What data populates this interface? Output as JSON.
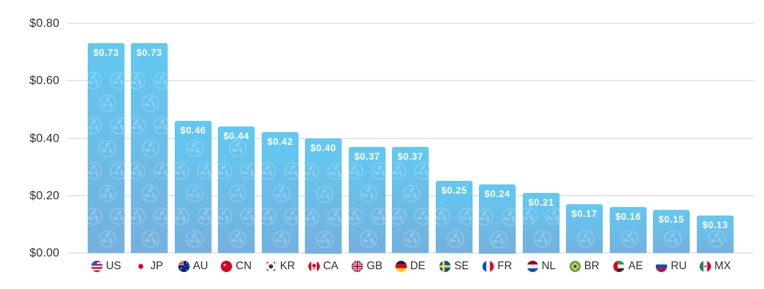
{
  "chart_data": {
    "type": "bar",
    "title": "",
    "xlabel": "",
    "ylabel": "",
    "ylim": [
      0,
      0.8
    ],
    "grid": true,
    "legend": "none",
    "categories": [
      "US",
      "JP",
      "AU",
      "CN",
      "KR",
      "CA",
      "GB",
      "DE",
      "SE",
      "FR",
      "NL",
      "BR",
      "AE",
      "RU",
      "MX"
    ],
    "values": [
      0.73,
      0.73,
      0.46,
      0.44,
      0.42,
      0.4,
      0.37,
      0.37,
      0.25,
      0.24,
      0.21,
      0.17,
      0.16,
      0.15,
      0.13
    ],
    "bar_labels": [
      "$0.73",
      "$0.73",
      "$0.46",
      "$0.44",
      "$0.42",
      "$0.40",
      "$0.37",
      "$0.37",
      "$0.25",
      "$0.24",
      "$0.21",
      "$0.17",
      "$0.16",
      "$0.15",
      "$0.13"
    ],
    "flag_icons": [
      "us-flag-icon",
      "jp-flag-icon",
      "au-flag-icon",
      "cn-flag-icon",
      "kr-flag-icon",
      "ca-flag-icon",
      "gb-flag-icon",
      "de-flag-icon",
      "se-flag-icon",
      "fr-flag-icon",
      "nl-flag-icon",
      "br-flag-icon",
      "ae-flag-icon",
      "ru-flag-icon",
      "mx-flag-icon"
    ],
    "watermark_icon": "pinwheel-watermark-icon",
    "y_ticks": [
      {
        "label": "$0.80",
        "value": 0.8
      },
      {
        "label": "$0.60",
        "value": 0.6
      },
      {
        "label": "$0.40",
        "value": 0.4
      },
      {
        "label": "$0.20",
        "value": 0.2
      },
      {
        "label": "$0.00",
        "value": 0.0
      }
    ],
    "colors": {
      "bar_top": "#61C9F2",
      "bar_bottom": "#74B1DE",
      "value_text": "#FFFFFF",
      "gridline": "#E7E7E9",
      "axis_text": "#2C2F36",
      "watermark": "#FFFFFF",
      "background": "#FFFFFF"
    }
  }
}
